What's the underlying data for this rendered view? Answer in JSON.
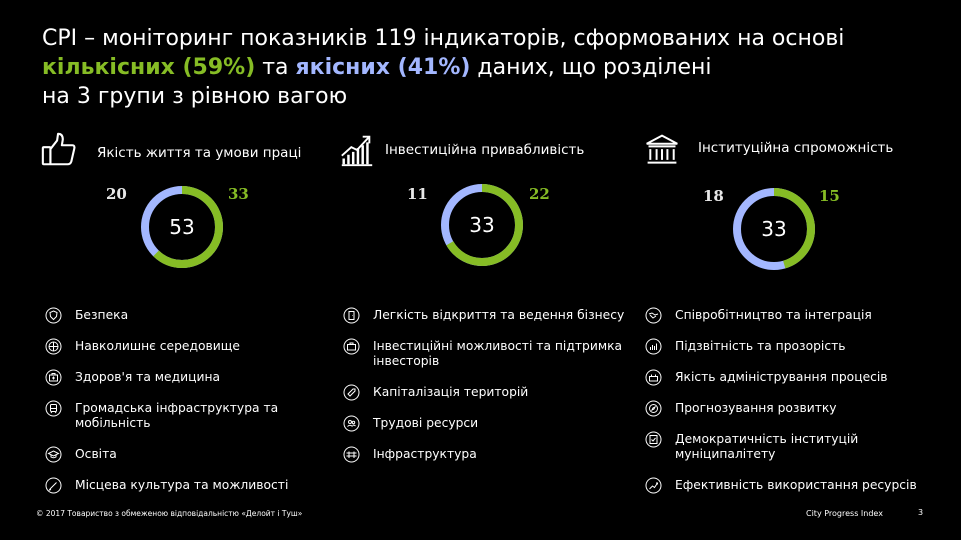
{
  "title": {
    "line1": "CPI – моніторинг показників 119 індикаторів, сформованих на основі",
    "quant": "кількісних (59%)",
    "mid": " та ",
    "qual": "якісних (41%)",
    "tail": " даних, що розділені",
    "line3": "на 3 групи з рівною вагою"
  },
  "colors": {
    "green": "#86bc25",
    "blue": "#a3b7ff",
    "background": "#000000"
  },
  "groups": [
    {
      "icon": "thumbs-up-icon",
      "label": "Якість життя та умови праці",
      "total": "53",
      "qualitative": "20",
      "quantitative": "33",
      "items": [
        {
          "icon": "shield-icon",
          "label": "Безпека"
        },
        {
          "icon": "globe-icon",
          "label": "Навколишнє середовище"
        },
        {
          "icon": "medical-icon",
          "label": "Здоров'я та медицина"
        },
        {
          "icon": "transport-icon",
          "label": "Громадська інфраструктура та мобільність"
        },
        {
          "icon": "graduation-icon",
          "label": "Освіта"
        },
        {
          "icon": "brush-icon",
          "label": "Місцева культура та можливості"
        }
      ]
    },
    {
      "icon": "growth-chart-icon",
      "label": "Інвестиційна привабливість",
      "total": "33",
      "qualitative": "11",
      "quantitative": "22",
      "items": [
        {
          "icon": "door-icon",
          "label": "Легкість відкриття та ведення бізнесу"
        },
        {
          "icon": "briefcase-icon",
          "label": "Інвестиційні можливості та підтримка інвесторів"
        },
        {
          "icon": "tag-icon",
          "label": "Капіталізація територій"
        },
        {
          "icon": "people-icon",
          "label": "Трудові ресурси"
        },
        {
          "icon": "bridge-icon",
          "label": "Інфраструктура"
        }
      ]
    },
    {
      "icon": "institution-icon",
      "label": "Інституційна спроможність",
      "total": "33",
      "qualitative": "18",
      "quantitative": "15",
      "items": [
        {
          "icon": "handshake-icon",
          "label": "Співробітництво та інтеграція"
        },
        {
          "icon": "transparency-icon",
          "label": "Підзвітність та прозорість"
        },
        {
          "icon": "process-icon",
          "label": "Якість адміністрування процесів"
        },
        {
          "icon": "compass-icon",
          "label": "Прогнозування розвитку"
        },
        {
          "icon": "checklist-icon",
          "label": "Демократичність інституцій муніципалітету"
        },
        {
          "icon": "efficiency-icon",
          "label": "Ефективність використання ресурсів"
        }
      ]
    }
  ],
  "footer": {
    "copyright": "© 2017 Товариство з обмеженою відповідальністю «Делойт і Туш»",
    "brand": "City Progress Index",
    "page": "3"
  }
}
